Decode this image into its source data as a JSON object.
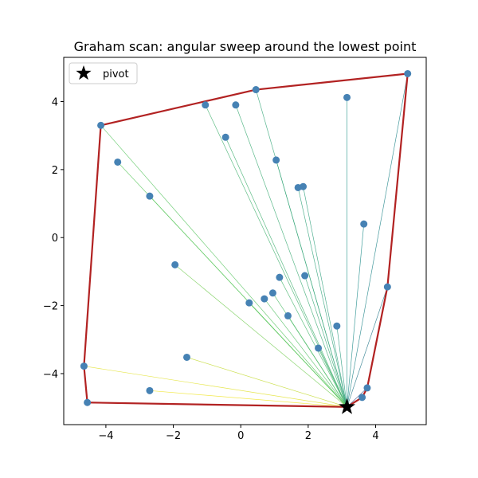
{
  "chart_data": {
    "type": "scatter",
    "title": "Graham scan: angular sweep around the lowest point",
    "xlabel": "",
    "ylabel": "",
    "xlim": [
      -5.25,
      5.5
    ],
    "ylim": [
      -5.5,
      5.3
    ],
    "x_ticks": [
      -4,
      -2,
      0,
      2,
      4
    ],
    "y_ticks": [
      -4,
      -2,
      0,
      2,
      4
    ],
    "x_tick_labels": [
      "−4",
      "−2",
      "0",
      "2",
      "4"
    ],
    "y_tick_labels": [
      "−4",
      "−2",
      "0",
      "2",
      "4"
    ],
    "grid": false,
    "legend": {
      "position": "top-left",
      "entries": [
        "pivot"
      ]
    },
    "colors": {
      "points": "#4682b4",
      "hull": "#b22222",
      "pivot": "#000000"
    },
    "pivot": {
      "x": 3.15,
      "y": -4.98
    },
    "points": [
      {
        "x": 4.95,
        "y": 4.82
      },
      {
        "x": 0.45,
        "y": 4.35
      },
      {
        "x": -1.05,
        "y": 3.9
      },
      {
        "x": -0.15,
        "y": 3.9
      },
      {
        "x": 3.15,
        "y": 4.12
      },
      {
        "x": -4.15,
        "y": 3.3
      },
      {
        "x": -0.45,
        "y": 2.95
      },
      {
        "x": 1.05,
        "y": 2.28
      },
      {
        "x": -3.65,
        "y": 2.22
      },
      {
        "x": 1.7,
        "y": 1.47
      },
      {
        "x": 1.85,
        "y": 1.5
      },
      {
        "x": -2.7,
        "y": 1.22
      },
      {
        "x": 3.65,
        "y": 0.4
      },
      {
        "x": -1.95,
        "y": -0.8
      },
      {
        "x": 1.15,
        "y": -1.17
      },
      {
        "x": 1.9,
        "y": -1.12
      },
      {
        "x": 4.35,
        "y": -1.45
      },
      {
        "x": 0.95,
        "y": -1.63
      },
      {
        "x": 0.7,
        "y": -1.8
      },
      {
        "x": 0.25,
        "y": -1.92
      },
      {
        "x": 1.4,
        "y": -2.3
      },
      {
        "x": 2.85,
        "y": -2.6
      },
      {
        "x": 2.3,
        "y": -3.25
      },
      {
        "x": -1.6,
        "y": -3.52
      },
      {
        "x": -4.65,
        "y": -3.78
      },
      {
        "x": -2.7,
        "y": -4.5
      },
      {
        "x": -4.55,
        "y": -4.85
      },
      {
        "x": 3.75,
        "y": -4.42
      },
      {
        "x": 3.6,
        "y": -4.7
      }
    ],
    "hull": [
      {
        "x": 3.15,
        "y": -4.98
      },
      {
        "x": 3.6,
        "y": -4.7
      },
      {
        "x": 3.75,
        "y": -4.42
      },
      {
        "x": 4.35,
        "y": -1.45
      },
      {
        "x": 4.95,
        "y": 4.82
      },
      {
        "x": 0.45,
        "y": 4.35
      },
      {
        "x": -4.15,
        "y": 3.3
      },
      {
        "x": -4.65,
        "y": -3.78
      },
      {
        "x": -4.55,
        "y": -4.85
      }
    ]
  }
}
